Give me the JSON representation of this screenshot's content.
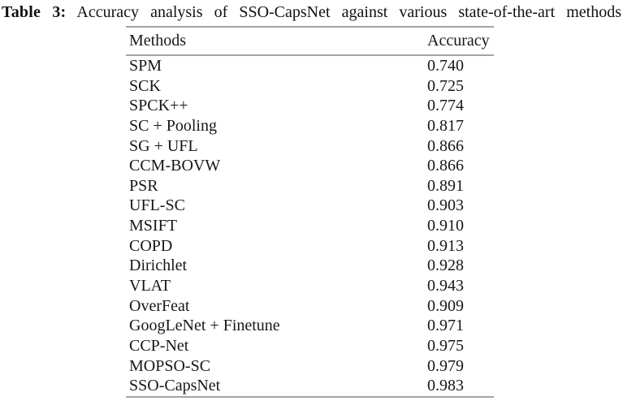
{
  "caption": {
    "label": "Table 3:",
    "text": "Accuracy analysis of SSO-CapsNet against various state-of-the-art methods"
  },
  "table": {
    "columns": [
      "Methods",
      "Accuracy"
    ],
    "rows": [
      {
        "method": "SPM",
        "accuracy": "0.740"
      },
      {
        "method": "SCK",
        "accuracy": "0.725"
      },
      {
        "method": "SPCK++",
        "accuracy": "0.774"
      },
      {
        "method": "SC + Pooling",
        "accuracy": "0.817"
      },
      {
        "method": "SG + UFL",
        "accuracy": "0.866"
      },
      {
        "method": "CCM-BOVW",
        "accuracy": "0.866"
      },
      {
        "method": "PSR",
        "accuracy": "0.891"
      },
      {
        "method": "UFL-SC",
        "accuracy": "0.903"
      },
      {
        "method": "MSIFT",
        "accuracy": "0.910"
      },
      {
        "method": "COPD",
        "accuracy": "0.913"
      },
      {
        "method": "Dirichlet",
        "accuracy": "0.928"
      },
      {
        "method": "VLAT",
        "accuracy": "0.943"
      },
      {
        "method": "OverFeat",
        "accuracy": "0.909"
      },
      {
        "method": "GoogLeNet + Finetune",
        "accuracy": "0.971"
      },
      {
        "method": "CCP-Net",
        "accuracy": "0.975"
      },
      {
        "method": "MOPSO-SC",
        "accuracy": "0.979"
      },
      {
        "method": "SSO-CapsNet",
        "accuracy": "0.983"
      }
    ]
  },
  "colors": {
    "rule": "#a3a3a3",
    "text": "#171717",
    "background": "#ffffff"
  }
}
